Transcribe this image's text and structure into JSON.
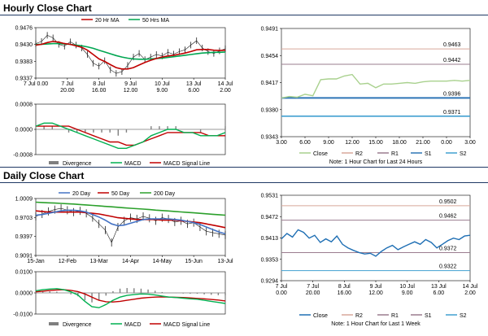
{
  "sections": {
    "hourly_title": "Hourly Close Chart",
    "daily_title": "Daily Close Chart"
  },
  "colors": {
    "close": "#1f1f1f",
    "ma20": "#c00000",
    "ma50": "#00a651",
    "ma200": "#2ca02c",
    "ma20_daily": "#4472c4",
    "r2": "#d8a89a",
    "r1": "#9a7c8f",
    "s1": "#2e75b6",
    "s2": "#41a0d0",
    "close_light": "#a9d18e",
    "close_blue": "#1f6fb4",
    "divergence": "#7f7f7f",
    "macd": "#00b050",
    "signal": "#c00000",
    "divider": "#1f3864"
  },
  "chart_data": [
    {
      "id": "hourly_price",
      "type": "line",
      "legend": [
        "20 Hr MA",
        "50 Hrs MA"
      ],
      "y_ticks": [
        "0.9476",
        "0.9430",
        "0.9383",
        "0.9337"
      ],
      "ylim": [
        0.9337,
        0.9476
      ],
      "x_ticks_row1": [
        "7 Jul 0.00",
        "7 Jul",
        "8 Jul",
        "9 Jul",
        "10 Jul",
        "13 Jul",
        "14 Jul"
      ],
      "x_ticks_row2": [
        "",
        "20.00",
        "16.00",
        "12.00",
        "9.00",
        "6.00",
        "2.00"
      ],
      "series": [
        {
          "name": "Close",
          "values": [
            0.9432,
            0.9438,
            0.9455,
            0.9448,
            0.943,
            0.9425,
            0.9437,
            0.9428,
            0.942,
            0.9402,
            0.9378,
            0.937,
            0.9385,
            0.936,
            0.935,
            0.9355,
            0.9372,
            0.9395,
            0.9405,
            0.9388,
            0.9395,
            0.9402,
            0.9398,
            0.9408,
            0.9403,
            0.941,
            0.9415,
            0.9428,
            0.944,
            0.942,
            0.941,
            0.9405,
            0.9412,
            0.9418
          ]
        },
        {
          "name": "20 Hr MA",
          "values": [
            0.9428,
            0.943,
            0.9435,
            0.9438,
            0.9436,
            0.9432,
            0.943,
            0.9426,
            0.9422,
            0.9414,
            0.9402,
            0.939,
            0.9383,
            0.9374,
            0.9366,
            0.9362,
            0.9362,
            0.9366,
            0.9373,
            0.938,
            0.9386,
            0.9391,
            0.9395,
            0.9398,
            0.94,
            0.9403,
            0.9406,
            0.941,
            0.9415,
            0.9416,
            0.9416,
            0.9414,
            0.9413,
            0.9414
          ]
        },
        {
          "name": "50 Hrs MA",
          "values": [
            0.943,
            0.943,
            0.9431,
            0.9432,
            0.9432,
            0.9431,
            0.943,
            0.9428,
            0.9426,
            0.9423,
            0.9419,
            0.9414,
            0.9409,
            0.9404,
            0.9399,
            0.9395,
            0.9392,
            0.939,
            0.9389,
            0.9389,
            0.939,
            0.9391,
            0.9392,
            0.9394,
            0.9396,
            0.9398,
            0.94,
            0.9402,
            0.9404,
            0.9406,
            0.9407,
            0.9408,
            0.9408,
            0.9409
          ]
        }
      ]
    },
    {
      "id": "hourly_macd",
      "type": "line",
      "legend": [
        "Divergence",
        "MACD",
        "MACD Signal Line"
      ],
      "y_ticks": [
        "0.0008",
        "0.0000",
        "-0.0008"
      ],
      "ylim": [
        -0.0008,
        0.0008
      ],
      "series": [
        {
          "name": "MACD",
          "values": [
            0.0001,
            0.0002,
            0.0002,
            0.0001,
            0.0,
            -0.0001,
            -0.0002,
            -0.0003,
            -0.0004,
            -0.0005,
            -0.0006,
            -0.0006,
            -0.0005,
            -0.0004,
            -0.0002,
            -0.0001,
            0.0,
            0.0,
            -0.0001,
            -0.0001,
            -0.0002,
            -0.0002,
            -0.0002,
            -0.0001
          ]
        },
        {
          "name": "MACD Signal Line",
          "values": [
            0.0001,
            0.0001,
            0.0001,
            0.0001,
            0.0001,
            0.0,
            -0.0001,
            -0.0002,
            -0.0003,
            -0.0004,
            -0.0004,
            -0.0005,
            -0.0005,
            -0.0004,
            -0.0003,
            -0.0002,
            -0.0001,
            -0.0001,
            -0.0001,
            -0.0001,
            -0.0001,
            -0.0002,
            -0.0002,
            -0.0002
          ]
        },
        {
          "name": "Divergence",
          "values": [
            0.0,
            0.0001,
            0.0001,
            0.0,
            -0.0001,
            -0.0001,
            -0.0001,
            -0.0001,
            -0.0001,
            -0.0001,
            -0.0002,
            -0.0001,
            0.0,
            0.0,
            0.0001,
            0.0001,
            0.0001,
            0.0001,
            0.0,
            0.0,
            -0.0001,
            0.0,
            0.0,
            0.0001
          ]
        }
      ]
    },
    {
      "id": "hourly_levels",
      "type": "line",
      "y_ticks": [
        "0.9491",
        "0.9454",
        "0.9417",
        "0.9380",
        "0.9343"
      ],
      "ylim": [
        0.9343,
        0.9491
      ],
      "x_ticks": [
        "3.00",
        "6.00",
        "9.00",
        "12.00",
        "15.00",
        "18.00",
        "21.00",
        "0.00",
        "3.00"
      ],
      "levels": [
        {
          "name": "R2",
          "value": 0.9463,
          "label": "0.9463"
        },
        {
          "name": "R1",
          "value": 0.9442,
          "label": "0.9442"
        },
        {
          "name": "S1",
          "value": 0.9396,
          "label": "0.9396"
        },
        {
          "name": "S2",
          "value": 0.9371,
          "label": "0.9371"
        }
      ],
      "series": [
        {
          "name": "Close",
          "values": [
            0.9396,
            0.9398,
            0.9397,
            0.9401,
            0.9399,
            0.9421,
            0.9422,
            0.9422,
            0.9426,
            0.9428,
            0.9415,
            0.9416,
            0.941,
            0.9415,
            0.9415,
            0.9416,
            0.9417,
            0.9416,
            0.9418,
            0.9419,
            0.9419,
            0.9419,
            0.942,
            0.9419,
            0.942
          ]
        }
      ],
      "legend": [
        "Close",
        "R2",
        "R1",
        "S1",
        "S2"
      ],
      "note": "Note: 1 Hour Chart for Last 24 Hours"
    },
    {
      "id": "daily_price",
      "type": "line",
      "legend": [
        "20 Day",
        "50 Day",
        "200 Day"
      ],
      "y_ticks": [
        "1.0009",
        "0.9703",
        "0.9397",
        "0.9091"
      ],
      "ylim": [
        0.9091,
        1.0009
      ],
      "x_ticks": [
        "15-Jan",
        "12-Feb",
        "13-Mar",
        "14-Apr",
        "14-May",
        "15-Jun",
        "13-Jul"
      ],
      "series": [
        {
          "name": "Close",
          "values": [
            0.972,
            0.976,
            0.98,
            0.983,
            0.985,
            0.982,
            0.979,
            0.981,
            0.977,
            0.97,
            0.96,
            0.95,
            0.93,
            0.955,
            0.965,
            0.97,
            0.968,
            0.972,
            0.969,
            0.965,
            0.97,
            0.968,
            0.963,
            0.965,
            0.96,
            0.962,
            0.955,
            0.948,
            0.946,
            0.944,
            0.942
          ]
        },
        {
          "name": "20 Day",
          "values": [
            0.974,
            0.975,
            0.977,
            0.979,
            0.981,
            0.982,
            0.982,
            0.981,
            0.979,
            0.975,
            0.971,
            0.966,
            0.96,
            0.957,
            0.958,
            0.961,
            0.964,
            0.967,
            0.968,
            0.968,
            0.968,
            0.968,
            0.967,
            0.966,
            0.964,
            0.962,
            0.959,
            0.955,
            0.951,
            0.947,
            0.944
          ]
        },
        {
          "name": "50 Day",
          "values": [
            0.981,
            0.98,
            0.979,
            0.979,
            0.979,
            0.979,
            0.979,
            0.979,
            0.978,
            0.977,
            0.976,
            0.974,
            0.972,
            0.97,
            0.969,
            0.968,
            0.967,
            0.967,
            0.967,
            0.967,
            0.966,
            0.966,
            0.966,
            0.965,
            0.964,
            0.963,
            0.962,
            0.96,
            0.958,
            0.956,
            0.954
          ]
        },
        {
          "name": "200 Day",
          "values": [
            0.995,
            0.9945,
            0.994,
            0.9935,
            0.993,
            0.9925,
            0.992,
            0.9912,
            0.9905,
            0.9898,
            0.989,
            0.9882,
            0.9875,
            0.9868,
            0.986,
            0.9852,
            0.9845,
            0.9838,
            0.983,
            0.9822,
            0.9815,
            0.9808,
            0.98,
            0.9792,
            0.9785,
            0.9778,
            0.977,
            0.9762,
            0.9755,
            0.9748,
            0.974
          ]
        }
      ]
    },
    {
      "id": "daily_macd",
      "type": "line",
      "legend": [
        "Divergence",
        "MACD",
        "MACD Signal Line"
      ],
      "y_ticks": [
        "0.0100",
        "0.0000",
        "-0.0100"
      ],
      "ylim": [
        -0.01,
        0.01
      ],
      "series": [
        {
          "name": "MACD",
          "values": [
            0.001,
            0.0015,
            0.0018,
            0.002,
            0.0015,
            0.0005,
            -0.001,
            -0.004,
            -0.0065,
            -0.007,
            -0.0055,
            -0.0035,
            -0.002,
            -0.0012,
            -0.0008,
            -0.0005,
            -0.0006,
            -0.001,
            -0.0015,
            -0.002,
            -0.0022,
            -0.0025,
            -0.0028,
            -0.003,
            -0.0035,
            -0.004,
            -0.0045,
            -0.005
          ]
        },
        {
          "name": "MACD Signal Line",
          "values": [
            0.0005,
            0.0008,
            0.0011,
            0.0014,
            0.0015,
            0.0012,
            0.0006,
            -0.0005,
            -0.002,
            -0.0035,
            -0.0042,
            -0.0043,
            -0.004,
            -0.0035,
            -0.003,
            -0.0025,
            -0.0022,
            -0.002,
            -0.0019,
            -0.002,
            -0.0021,
            -0.0022,
            -0.0024,
            -0.0026,
            -0.0028,
            -0.0031,
            -0.0034,
            -0.0038
          ]
        },
        {
          "name": "Divergence",
          "values": [
            0.0005,
            0.0007,
            0.0007,
            0.0006,
            0.0,
            -0.0007,
            -0.0016,
            -0.0035,
            -0.0045,
            -0.0035,
            -0.0013,
            0.0008,
            0.002,
            0.0023,
            0.0022,
            0.002,
            0.0016,
            0.001,
            0.0004,
            0.0,
            -0.0001,
            -0.0003,
            -0.0004,
            -0.0004,
            -0.0007,
            -0.0009,
            -0.0011,
            -0.0012
          ]
        }
      ]
    },
    {
      "id": "daily_levels",
      "type": "line",
      "y_ticks": [
        "0.9531",
        "0.9472",
        "0.9413",
        "0.9353",
        "0.9294"
      ],
      "ylim": [
        0.9294,
        0.9531
      ],
      "x_ticks_row1": [
        "7 Jul",
        "7 Jul",
        "8 Jul",
        "9 Jul",
        "10 Jul",
        "13 Jul",
        "14 Jul"
      ],
      "x_ticks_row2": [
        "0.00",
        "20.00",
        "16.00",
        "12.00",
        "9.00",
        "6.00",
        "2.00"
      ],
      "levels": [
        {
          "name": "R2",
          "value": 0.9502,
          "label": "0.9502"
        },
        {
          "name": "R1",
          "value": 0.9462,
          "label": "0.9462"
        },
        {
          "name": "S1",
          "value": 0.9372,
          "label": "0.9372"
        },
        {
          "name": "S2",
          "value": 0.9322,
          "label": "0.9322"
        }
      ],
      "series": [
        {
          "name": "Close",
          "values": [
            0.941,
            0.9425,
            0.9415,
            0.9435,
            0.9428,
            0.9412,
            0.942,
            0.94,
            0.941,
            0.9402,
            0.9418,
            0.9395,
            0.9385,
            0.9378,
            0.9372,
            0.9368,
            0.937,
            0.9362,
            0.9375,
            0.9385,
            0.9392,
            0.938,
            0.9388,
            0.9395,
            0.9402,
            0.9395,
            0.9408,
            0.94,
            0.9385,
            0.9395,
            0.9405,
            0.9412,
            0.9408,
            0.9418,
            0.942
          ]
        }
      ],
      "legend": [
        "Close",
        "R2",
        "R1",
        "S1",
        "S2"
      ],
      "note": "Note: 1 Hour Chart for Last 1 Week"
    }
  ]
}
